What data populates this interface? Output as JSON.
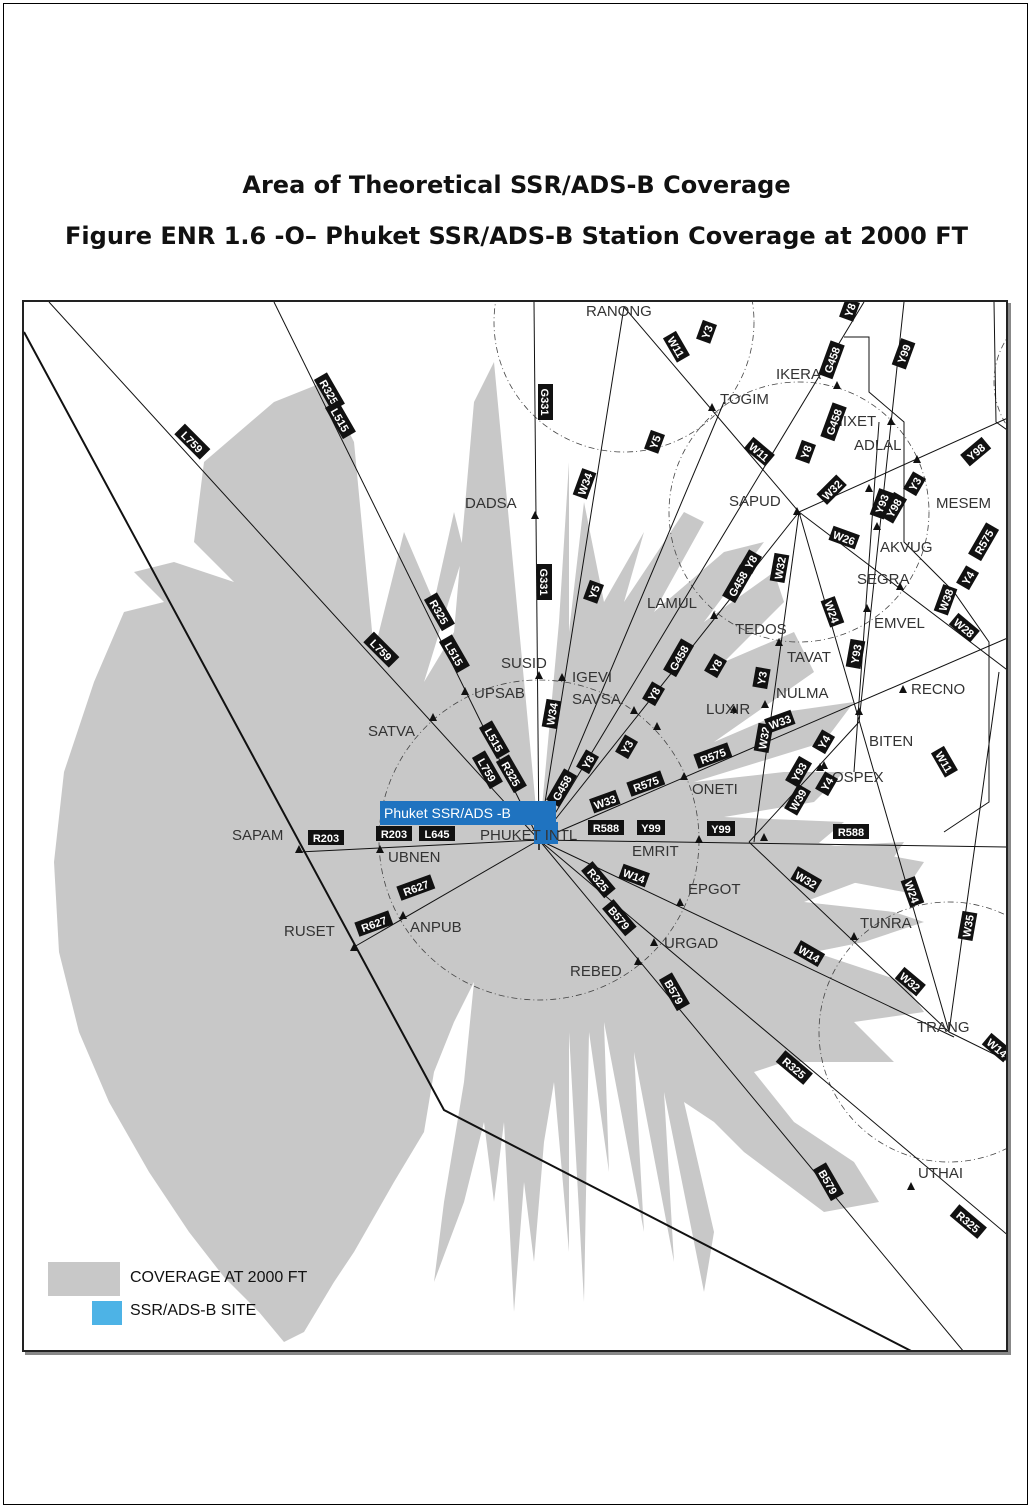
{
  "titles": {
    "line1": "Area of Theoretical SSR/ADS-B Coverage",
    "line2": "Figure ENR 1.6 -O– Phuket SSR/ADS-B Station Coverage at 2000 FT"
  },
  "site_label": "Phuket SSR/ADS -B",
  "colors": {
    "coverage": "#c8c8c8",
    "site": "#4db3e6",
    "site_label_bg": "#1f73c0"
  },
  "legend": {
    "coverage": "COVERAGE AT 2000 FT",
    "site": "SSR/ADS-B SITE"
  },
  "waypoints": [
    {
      "name": "RANONG"
    },
    {
      "name": "IKERA"
    },
    {
      "name": "TOGIM"
    },
    {
      "name": "NIXET"
    },
    {
      "name": "ADLAL"
    },
    {
      "name": "SAPUD"
    },
    {
      "name": "MESEM"
    },
    {
      "name": "DADSA"
    },
    {
      "name": "AKVUG"
    },
    {
      "name": "SEGRA"
    },
    {
      "name": "LAMUL"
    },
    {
      "name": "TEDOS"
    },
    {
      "name": "EMVEL"
    },
    {
      "name": "TAVAT"
    },
    {
      "name": "SUSID"
    },
    {
      "name": "UPSAB"
    },
    {
      "name": "IGEVI"
    },
    {
      "name": "SAVSA"
    },
    {
      "name": "NULMA"
    },
    {
      "name": "RECNO"
    },
    {
      "name": "LUXIR"
    },
    {
      "name": "SATVA"
    },
    {
      "name": "BITEN"
    },
    {
      "name": "OSPEX"
    },
    {
      "name": "ONETI"
    },
    {
      "name": "SAPAM"
    },
    {
      "name": "PHUKET INTL"
    },
    {
      "name": "UBNEN"
    },
    {
      "name": "EMRIT"
    },
    {
      "name": "EPGOT"
    },
    {
      "name": "RUSET"
    },
    {
      "name": "ANPUB"
    },
    {
      "name": "TUNRA"
    },
    {
      "name": "URGAD"
    },
    {
      "name": "REBED"
    },
    {
      "name": "TRANG"
    },
    {
      "name": "UTHAI"
    }
  ],
  "route_labels": [
    "W11",
    "Y3",
    "Y8",
    "G458",
    "Y99",
    "L759",
    "R325",
    "L515",
    "G331",
    "W34",
    "Y5",
    "W32",
    "W11",
    "Y8",
    "G458",
    "Y98",
    "Y3",
    "Y93",
    "Y98",
    "W26",
    "R575",
    "Y8",
    "G458",
    "W32",
    "W38",
    "Y4",
    "W24",
    "Y93",
    "W28",
    "L759",
    "R325",
    "L515",
    "G331",
    "Y5",
    "Y8",
    "G458",
    "Y8",
    "Y3",
    "Y3",
    "W32",
    "W33",
    "W39",
    "Y4",
    "L515",
    "R325",
    "L759",
    "W34",
    "G458",
    "Y8",
    "W33",
    "R575",
    "R575",
    "Y4",
    "Y93",
    "W11",
    "R203",
    "R203",
    "L645",
    "R588",
    "Y99",
    "Y99",
    "R588",
    "R627",
    "R627",
    "R325",
    "W14",
    "W32",
    "W24",
    "B579",
    "W14",
    "W35",
    "B579",
    "W32",
    "R325",
    "W14",
    "B579",
    "R325"
  ]
}
